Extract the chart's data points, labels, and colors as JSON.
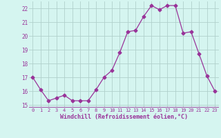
{
  "x": [
    0,
    1,
    2,
    3,
    4,
    5,
    6,
    7,
    8,
    9,
    10,
    11,
    12,
    13,
    14,
    15,
    16,
    17,
    18,
    19,
    20,
    21,
    22,
    23
  ],
  "y": [
    17.0,
    16.1,
    15.3,
    15.5,
    15.7,
    15.3,
    15.3,
    15.3,
    16.1,
    17.0,
    17.5,
    18.8,
    20.3,
    20.4,
    21.4,
    22.2,
    21.9,
    22.2,
    22.2,
    20.2,
    20.3,
    18.7,
    17.1,
    16.0
  ],
  "line_color": "#993399",
  "marker": "D",
  "marker_size": 2.5,
  "bg_color": "#d5f5f0",
  "grid_color": "#b0d0cc",
  "xlabel": "Windchill (Refroidissement éolien,°C)",
  "xlabel_color": "#993399",
  "tick_color": "#993399",
  "ylim": [
    14.8,
    22.5
  ],
  "yticks": [
    15,
    16,
    17,
    18,
    19,
    20,
    21,
    22
  ],
  "xlim": [
    -0.5,
    23.5
  ],
  "xticks": [
    0,
    1,
    2,
    3,
    4,
    5,
    6,
    7,
    8,
    9,
    10,
    11,
    12,
    13,
    14,
    15,
    16,
    17,
    18,
    19,
    20,
    21,
    22,
    23
  ]
}
